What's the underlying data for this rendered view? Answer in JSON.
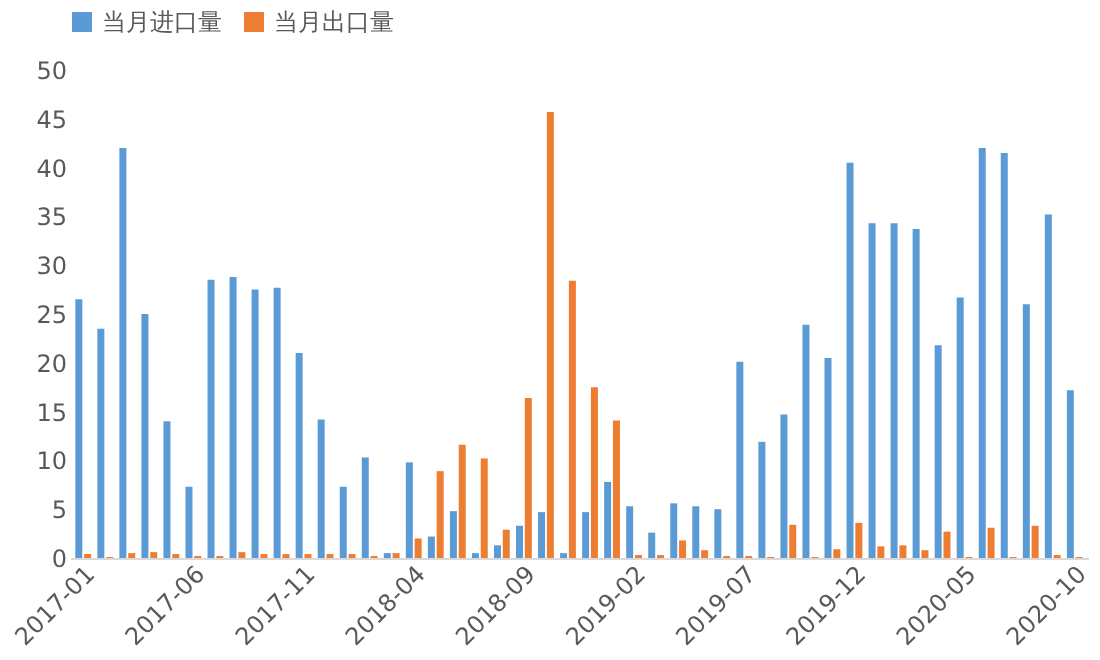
{
  "chart_data": {
    "type": "bar",
    "categories": [
      "2017-01",
      null,
      null,
      null,
      null,
      "2017-06",
      null,
      null,
      null,
      null,
      "2017-11",
      null,
      null,
      null,
      null,
      "2018-04",
      null,
      null,
      null,
      null,
      "2018-09",
      null,
      null,
      null,
      null,
      "2019-02",
      null,
      null,
      null,
      null,
      "2019-07",
      null,
      null,
      null,
      null,
      "2019-12",
      null,
      null,
      null,
      null,
      "2020-05",
      null,
      null,
      null,
      null,
      "2020-10"
    ],
    "series": [
      {
        "name": "当月进口量",
        "color": "#5b9bd5",
        "values": [
          26.5,
          23.5,
          42,
          25,
          14,
          7.3,
          28.5,
          28.8,
          27.5,
          27.7,
          21,
          14.2,
          7.3,
          10.3,
          0.5,
          9.8,
          2.2,
          4.8,
          0.5,
          1.3,
          3.3,
          4.7,
          0.5,
          4.7,
          7.8,
          5.3,
          2.6,
          5.6,
          5.3,
          5.0,
          20.1,
          11.9,
          14.7,
          23.9,
          20.5,
          40.5,
          34.3,
          34.3,
          33.7,
          21.8,
          26.7,
          42.0,
          41.5,
          26.0,
          35.2,
          17.2
        ]
      },
      {
        "name": "当月出口量",
        "color": "#ed7d31",
        "values": [
          0.4,
          0.1,
          0.5,
          0.6,
          0.4,
          0.2,
          0.2,
          0.6,
          0.4,
          0.4,
          0.4,
          0.4,
          0.4,
          0.2,
          0.5,
          2.0,
          8.9,
          11.6,
          10.2,
          2.9,
          16.4,
          45.7,
          28.4,
          17.5,
          14.1,
          0.3,
          0.3,
          1.8,
          0.8,
          0.2,
          0.2,
          0.1,
          3.4,
          0.1,
          0.9,
          3.6,
          1.2,
          1.3,
          0.8,
          2.7,
          0.1,
          3.1,
          0.1,
          3.3,
          0.3,
          0.1
        ]
      }
    ],
    "ylim": [
      0,
      50
    ],
    "yticks": [
      0,
      5,
      10,
      15,
      20,
      25,
      30,
      35,
      40,
      45,
      50
    ],
    "grid": false,
    "legend": "top"
  }
}
